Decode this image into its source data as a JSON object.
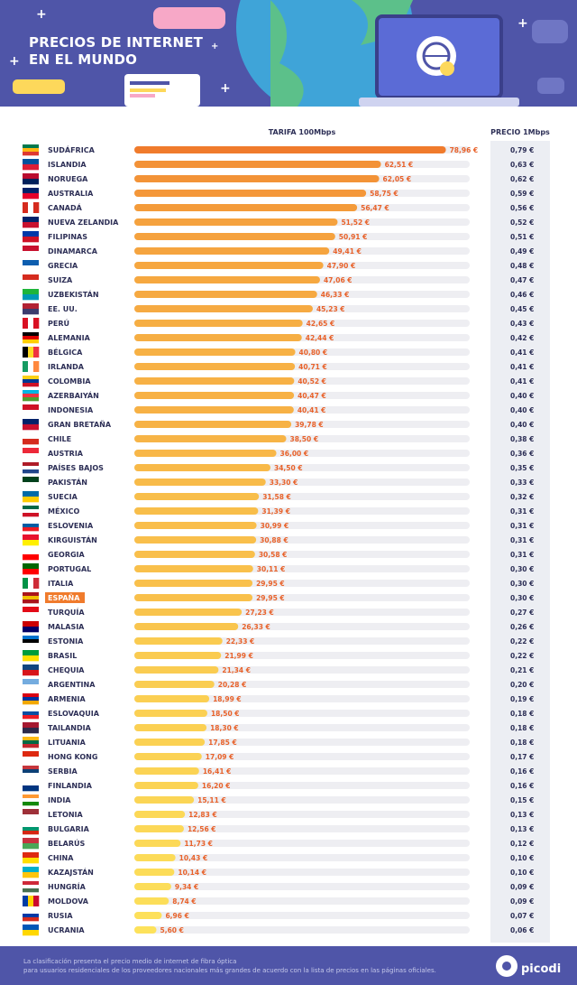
{
  "header": {
    "title_line1": "PRECIOS DE INTERNET",
    "title_line2": "EN EL MUNDO"
  },
  "colors": {
    "header_bg": "#4f55a8",
    "bar_high": "#f07b2c",
    "bar_low": "#fde25b",
    "highlight": "#f07b2c",
    "price_col_bg": "#eceef3"
  },
  "footer": {
    "line1": "La clasificación presenta el precio medio de internet de fibra óptica",
    "line2": "para usuarios residenciales de los proveedores nacionales más grandes de acuerdo con la lista de precios en las páginas oficiales.",
    "brand": "picodi"
  },
  "chart_data": {
    "type": "bar",
    "orientation": "horizontal",
    "highlight": "ESPAÑA",
    "columns": {
      "tarifa": "TARIFA 100Mbps",
      "precio": "PRECIO 1Mbps"
    },
    "xlim": [
      0,
      85
    ],
    "rows": [
      {
        "country": "SUDÁFRICA",
        "flag": "za",
        "value": 78.96,
        "label": "78,96 €",
        "price": "0,79 €"
      },
      {
        "country": "ISLANDIA",
        "flag": "is",
        "value": 62.51,
        "label": "62,51 €",
        "price": "0,63 €"
      },
      {
        "country": "NORUEGA",
        "flag": "no",
        "value": 62.05,
        "label": "62,05 €",
        "price": "0,62 €"
      },
      {
        "country": "AUSTRALIA",
        "flag": "au",
        "value": 58.75,
        "label": "58,75 €",
        "price": "0,59 €"
      },
      {
        "country": "CANADÁ",
        "flag": "ca",
        "value": 56.47,
        "label": "56,47 €",
        "price": "0,56 €"
      },
      {
        "country": "NUEVA ZELANDIA",
        "flag": "nz",
        "value": 51.52,
        "label": "51,52 €",
        "price": "0,52 €"
      },
      {
        "country": "FILIPINAS",
        "flag": "ph",
        "value": 50.91,
        "label": "50,91 €",
        "price": "0,51 €"
      },
      {
        "country": "DINAMARCA",
        "flag": "dk",
        "value": 49.41,
        "label": "49,41 €",
        "price": "0,49 €"
      },
      {
        "country": "GRECIA",
        "flag": "gr",
        "value": 47.9,
        "label": "47,90 €",
        "price": "0,48 €"
      },
      {
        "country": "SUIZA",
        "flag": "ch",
        "value": 47.06,
        "label": "47,06 €",
        "price": "0,47 €"
      },
      {
        "country": "UZBEKISTÁN",
        "flag": "uz",
        "value": 46.33,
        "label": "46,33 €",
        "price": "0,46 €"
      },
      {
        "country": "EE. UU.",
        "flag": "us",
        "value": 45.23,
        "label": "45,23 €",
        "price": "0,45 €"
      },
      {
        "country": "PERÚ",
        "flag": "pe",
        "value": 42.65,
        "label": "42,65 €",
        "price": "0,43 €"
      },
      {
        "country": "ALEMANIA",
        "flag": "de",
        "value": 42.44,
        "label": "42,44 €",
        "price": "0,42 €"
      },
      {
        "country": "BÉLGICA",
        "flag": "be",
        "value": 40.8,
        "label": "40,80 €",
        "price": "0,41 €"
      },
      {
        "country": "IRLANDA",
        "flag": "ie",
        "value": 40.71,
        "label": "40,71 €",
        "price": "0,41 €"
      },
      {
        "country": "COLOMBIA",
        "flag": "co",
        "value": 40.52,
        "label": "40,52 €",
        "price": "0,41 €"
      },
      {
        "country": "AZERBAIYÁN",
        "flag": "az",
        "value": 40.47,
        "label": "40,47 €",
        "price": "0,40 €"
      },
      {
        "country": "INDONESIA",
        "flag": "id",
        "value": 40.41,
        "label": "40,41 €",
        "price": "0,40 €"
      },
      {
        "country": "GRAN BRETAÑA",
        "flag": "gb",
        "value": 39.78,
        "label": "39,78 €",
        "price": "0,40 €"
      },
      {
        "country": "CHILE",
        "flag": "cl",
        "value": 38.5,
        "label": "38,50 €",
        "price": "0,38 €"
      },
      {
        "country": "AUSTRIA",
        "flag": "at",
        "value": 36.0,
        "label": "36,00 €",
        "price": "0,36 €"
      },
      {
        "country": "PAÍSES BAJOS",
        "flag": "nl",
        "value": 34.5,
        "label": "34,50 €",
        "price": "0,35 €"
      },
      {
        "country": "PAKISTÁN",
        "flag": "pk",
        "value": 33.3,
        "label": "33,30 €",
        "price": "0,33 €"
      },
      {
        "country": "SUECIA",
        "flag": "se",
        "value": 31.58,
        "label": "31,58 €",
        "price": "0,32 €"
      },
      {
        "country": "MÉXICO",
        "flag": "mx",
        "value": 31.39,
        "label": "31,39 €",
        "price": "0,31 €"
      },
      {
        "country": "ESLOVENIA",
        "flag": "si",
        "value": 30.99,
        "label": "30,99 €",
        "price": "0,31 €"
      },
      {
        "country": "KIRGUISTÁN",
        "flag": "kg",
        "value": 30.88,
        "label": "30,88 €",
        "price": "0,31 €"
      },
      {
        "country": "GEORGIA",
        "flag": "ge",
        "value": 30.58,
        "label": "30,58 €",
        "price": "0,31 €"
      },
      {
        "country": "PORTUGAL",
        "flag": "pt",
        "value": 30.11,
        "label": "30,11 €",
        "price": "0,30 €"
      },
      {
        "country": "ITALIA",
        "flag": "it",
        "value": 29.95,
        "label": "29,95 €",
        "price": "0,30 €"
      },
      {
        "country": "ESPAÑA",
        "flag": "es",
        "value": 29.95,
        "label": "29,95 €",
        "price": "0,30 €"
      },
      {
        "country": "TURQUÍA",
        "flag": "tr",
        "value": 27.23,
        "label": "27,23 €",
        "price": "0,27 €"
      },
      {
        "country": "MALASIA",
        "flag": "my",
        "value": 26.33,
        "label": "26,33 €",
        "price": "0,26 €"
      },
      {
        "country": "ESTONIA",
        "flag": "ee",
        "value": 22.33,
        "label": "22,33 €",
        "price": "0,22 €"
      },
      {
        "country": "BRASIL",
        "flag": "br",
        "value": 21.99,
        "label": "21,99 €",
        "price": "0,22 €"
      },
      {
        "country": "CHEQUIA",
        "flag": "cz",
        "value": 21.34,
        "label": "21,34 €",
        "price": "0,21 €"
      },
      {
        "country": "ARGENTINA",
        "flag": "ar",
        "value": 20.28,
        "label": "20,28 €",
        "price": "0,20 €"
      },
      {
        "country": "ARMENIA",
        "flag": "am",
        "value": 18.99,
        "label": "18,99 €",
        "price": "0,19 €"
      },
      {
        "country": "ESLOVAQUIA",
        "flag": "sk",
        "value": 18.5,
        "label": "18,50 €",
        "price": "0,18 €"
      },
      {
        "country": "TAILANDIA",
        "flag": "th",
        "value": 18.3,
        "label": "18,30 €",
        "price": "0,18 €"
      },
      {
        "country": "LITUANIA",
        "flag": "lt",
        "value": 17.85,
        "label": "17,85 €",
        "price": "0,18 €"
      },
      {
        "country": "HONG KONG",
        "flag": "hk",
        "value": 17.09,
        "label": "17,09 €",
        "price": "0,17 €"
      },
      {
        "country": "SERBIA",
        "flag": "rs",
        "value": 16.41,
        "label": "16,41 €",
        "price": "0,16 €"
      },
      {
        "country": "FINLANDIA",
        "flag": "fi",
        "value": 16.2,
        "label": "16,20 €",
        "price": "0,16 €"
      },
      {
        "country": "INDIA",
        "flag": "in",
        "value": 15.11,
        "label": "15,11 €",
        "price": "0,15 €"
      },
      {
        "country": "LETONIA",
        "flag": "lv",
        "value": 12.83,
        "label": "12,83 €",
        "price": "0,13 €"
      },
      {
        "country": "BULGARIA",
        "flag": "bg",
        "value": 12.56,
        "label": "12,56 €",
        "price": "0,13 €"
      },
      {
        "country": "BELARÚS",
        "flag": "by",
        "value": 11.73,
        "label": "11,73 €",
        "price": "0,12 €"
      },
      {
        "country": "CHINA",
        "flag": "cn",
        "value": 10.43,
        "label": "10,43 €",
        "price": "0,10 €"
      },
      {
        "country": "KAZAJSTÁN",
        "flag": "kz",
        "value": 10.14,
        "label": "10,14 €",
        "price": "0,10 €"
      },
      {
        "country": "HUNGRÍA",
        "flag": "hu",
        "value": 9.34,
        "label": "9,34 €",
        "price": "0,09 €"
      },
      {
        "country": "MOLDOVA",
        "flag": "md",
        "value": 8.74,
        "label": "8,74 €",
        "price": "0,09 €"
      },
      {
        "country": "RUSIA",
        "flag": "ru",
        "value": 6.96,
        "label": "6,96 €",
        "price": "0,07 €"
      },
      {
        "country": "UCRANIA",
        "flag": "ua",
        "value": 5.6,
        "label": "5,60 €",
        "price": "0,06 €"
      }
    ]
  }
}
